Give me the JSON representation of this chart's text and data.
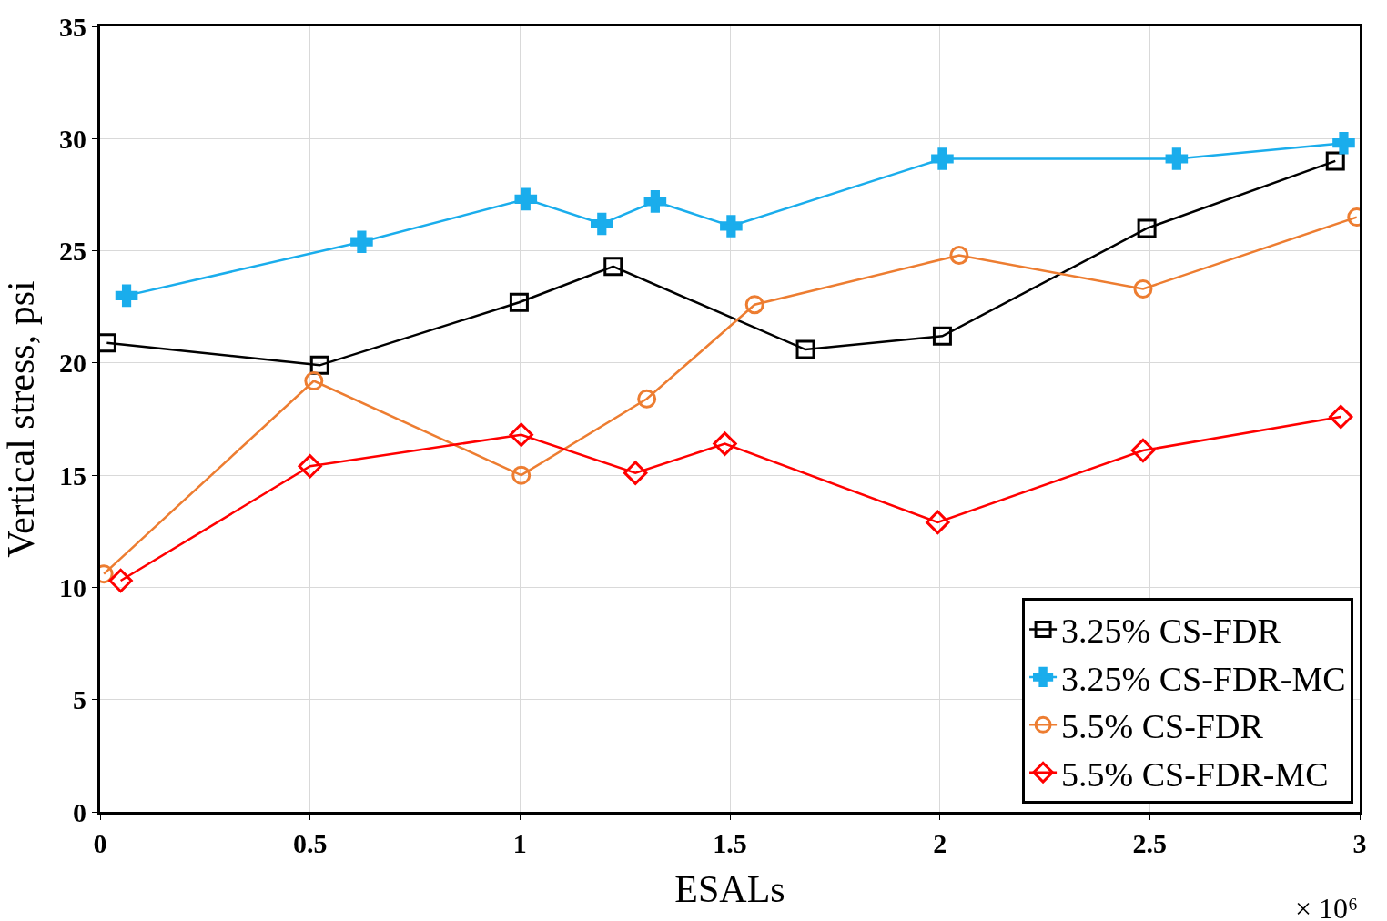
{
  "chart_data": {
    "type": "line",
    "xlabel": "ESALs",
    "ylabel": "Vertical stress, psi",
    "annotations": [
      "× 10⁶"
    ],
    "xlim": [
      0,
      3
    ],
    "xticks": [
      0,
      0.5,
      1,
      1.5,
      2,
      2.5,
      3
    ],
    "ylim": [
      0,
      35
    ],
    "yticks": [
      0,
      5,
      10,
      15,
      20,
      25,
      30,
      35
    ],
    "grid": true,
    "legend": "bottom right",
    "line_style": "solid",
    "series": [
      {
        "name": "3.25% CS-FDR",
        "color": "#000000",
        "marker": "square",
        "x": [
          0.016,
          0.523,
          0.998,
          1.222,
          1.68,
          2.006,
          2.493,
          2.942
        ],
        "values": [
          20.9,
          19.9,
          22.7,
          24.3,
          20.6,
          21.2,
          26.0,
          29.0
        ]
      },
      {
        "name": "3.25% CS-FDR-MC",
        "color": "#1aadec",
        "marker": "cross",
        "x": [
          0.063,
          0.623,
          1.014,
          1.195,
          1.322,
          1.503,
          2.006,
          2.564,
          2.962
        ],
        "values": [
          23.0,
          25.4,
          27.3,
          26.2,
          27.2,
          26.1,
          29.1,
          29.1,
          29.8
        ]
      },
      {
        "name": "5.5% CS-FDR",
        "color": "#ed7d31",
        "marker": "circle",
        "x": [
          0.009,
          0.509,
          1.003,
          1.302,
          1.559,
          2.046,
          2.484,
          2.993
        ],
        "values": [
          10.6,
          19.2,
          15.0,
          18.4,
          22.6,
          24.8,
          23.3,
          26.5
        ]
      },
      {
        "name": "5.5% CS-FDR-MC",
        "color": "#ff0000",
        "marker": "diamond",
        "x": [
          0.049,
          0.5,
          1.003,
          1.275,
          1.488,
          1.995,
          2.484,
          2.955
        ],
        "values": [
          10.3,
          15.4,
          16.8,
          15.1,
          16.4,
          12.9,
          16.1,
          17.6
        ]
      }
    ]
  }
}
